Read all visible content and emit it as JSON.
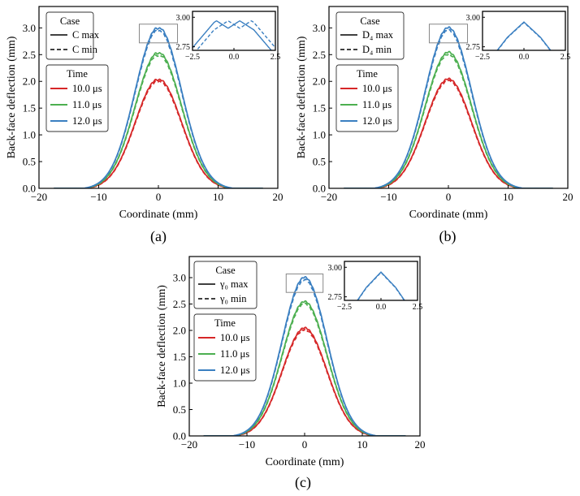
{
  "chart_data": [
    {
      "type": "line",
      "caption": "(a)",
      "xlabel": "Coordinate (mm)",
      "ylabel": "Back-face deflection (mm)",
      "xlim": [
        -20,
        20
      ],
      "ylim": [
        0,
        3.4
      ],
      "xticks": [
        -20,
        -10,
        0,
        10,
        20
      ],
      "yticks": [
        0.0,
        0.5,
        1.0,
        1.5,
        2.0,
        2.5,
        3.0
      ],
      "legend_case": {
        "title": "Case",
        "entries": [
          {
            "label": "C max",
            "style": "solid"
          },
          {
            "label": "C min",
            "style": "dashed"
          }
        ]
      },
      "legend_time": {
        "title": "Time",
        "entries": [
          {
            "label": "10.0 μs",
            "color": "#d62728"
          },
          {
            "label": "11.0 μs",
            "color": "#4caf50"
          },
          {
            "label": "12.0 μs",
            "color": "#3a7fc1"
          }
        ]
      },
      "peak_shape": "double",
      "series": [
        {
          "time": "10.0 μs",
          "peak": 2.0,
          "color": "#d62728"
        },
        {
          "time": "11.0 μs",
          "peak": 2.5,
          "color": "#4caf50"
        },
        {
          "time": "12.0 μs",
          "peak": 2.97,
          "color": "#3a7fc1"
        }
      ],
      "inset": {
        "xlim": [
          -2.5,
          2.5
        ],
        "ylim": [
          2.72,
          3.05
        ],
        "xticks": [
          -2.5,
          0.0,
          2.5
        ],
        "yticks": [
          2.75,
          3.0
        ],
        "xticklabels": [
          "−2.5",
          "0.0",
          "2.5"
        ],
        "yticklabels": [
          "2.75",
          "3.00"
        ]
      }
    },
    {
      "type": "line",
      "caption": "(b)",
      "xlabel": "Coordinate (mm)",
      "ylabel": "Back-face deflection (mm)",
      "xlim": [
        -20,
        20
      ],
      "ylim": [
        0,
        3.4
      ],
      "xticks": [
        -20,
        -10,
        0,
        10,
        20
      ],
      "yticks": [
        0.0,
        0.5,
        1.0,
        1.5,
        2.0,
        2.5,
        3.0
      ],
      "legend_case": {
        "title": "Case",
        "entries": [
          {
            "label": "D₄ max",
            "style": "solid"
          },
          {
            "label": "D₄ min",
            "style": "dashed"
          }
        ]
      },
      "legend_time": {
        "title": "Time",
        "entries": [
          {
            "label": "10.0 μs",
            "color": "#d62728"
          },
          {
            "label": "11.0 μs",
            "color": "#4caf50"
          },
          {
            "label": "12.0 μs",
            "color": "#3a7fc1"
          }
        ]
      },
      "peak_shape": "single",
      "series": [
        {
          "time": "10.0 μs",
          "peak": 2.0,
          "color": "#d62728"
        },
        {
          "time": "11.0 μs",
          "peak": 2.5,
          "color": "#4caf50"
        },
        {
          "time": "12.0 μs",
          "peak": 2.96,
          "color": "#3a7fc1"
        }
      ],
      "inset": {
        "xlim": [
          -2.5,
          2.5
        ],
        "ylim": [
          2.72,
          3.05
        ],
        "xticks": [
          -2.5,
          0.0,
          2.5
        ],
        "yticks": [
          2.75,
          3.0
        ],
        "xticklabels": [
          "−2.5",
          "0.0",
          "2.5"
        ],
        "yticklabels": [
          "2.75",
          "3.00"
        ]
      }
    },
    {
      "type": "line",
      "caption": "(c)",
      "xlabel": "Coordinate (mm)",
      "ylabel": "Back-face deflection (mm)",
      "xlim": [
        -20,
        20
      ],
      "ylim": [
        0,
        3.4
      ],
      "xticks": [
        -20,
        -10,
        0,
        10,
        20
      ],
      "yticks": [
        0.0,
        0.5,
        1.0,
        1.5,
        2.0,
        2.5,
        3.0
      ],
      "legend_case": {
        "title": "Case",
        "entries": [
          {
            "label": "γ₀ max",
            "style": "solid"
          },
          {
            "label": "γ₀ min",
            "style": "dashed"
          }
        ]
      },
      "legend_time": {
        "title": "Time",
        "entries": [
          {
            "label": "10.0 μs",
            "color": "#d62728"
          },
          {
            "label": "11.0 μs",
            "color": "#4caf50"
          },
          {
            "label": "12.0 μs",
            "color": "#3a7fc1"
          }
        ]
      },
      "peak_shape": "single",
      "series": [
        {
          "time": "10.0 μs",
          "peak": 2.0,
          "color": "#d62728"
        },
        {
          "time": "11.0 μs",
          "peak": 2.5,
          "color": "#4caf50"
        },
        {
          "time": "12.0 μs",
          "peak": 2.96,
          "color": "#3a7fc1"
        }
      ],
      "inset": {
        "xlim": [
          -2.5,
          2.5
        ],
        "ylim": [
          2.72,
          3.05
        ],
        "xticks": [
          -2.5,
          0.0,
          2.5
        ],
        "yticks": [
          2.75,
          3.0
        ],
        "xticklabels": [
          "−2.5",
          "0.0",
          "2.5"
        ],
        "yticklabels": [
          "2.75",
          "3.00"
        ]
      }
    }
  ]
}
